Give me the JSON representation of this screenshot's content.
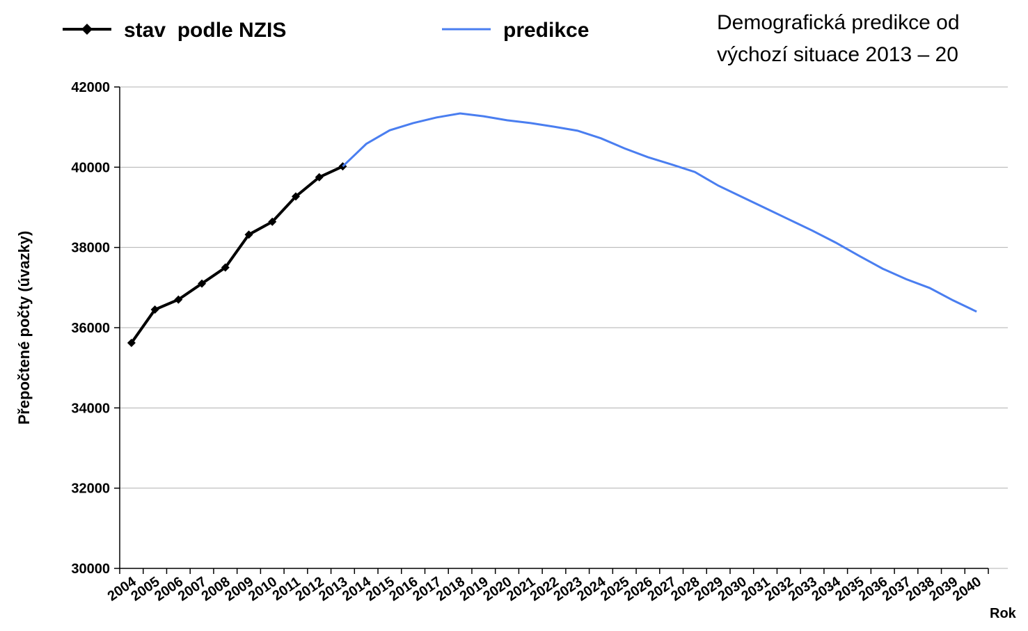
{
  "chart_data": {
    "type": "line",
    "title": [
      "Demografická predikce od",
      "výchozí situace 2013 – 20"
    ],
    "y_label": "Přepočtené počty (úvazky)",
    "x_label": "Rok",
    "categories": [
      "2004",
      "2005",
      "2006",
      "2007",
      "2008",
      "2009",
      "2010",
      "2011",
      "2012",
      "2013",
      "2014",
      "2015",
      "2016",
      "2017",
      "2018",
      "2019",
      "2020",
      "2021",
      "2022",
      "2023",
      "2024",
      "2025",
      "2026",
      "2027",
      "2028",
      "2029",
      "2030",
      "2031",
      "2032",
      "2033",
      "2034",
      "2035",
      "2036",
      "2037",
      "2038",
      "2039",
      "2040"
    ],
    "series": [
      {
        "name": "stav  podle NZIS",
        "color": "#000000",
        "marker": "diamond",
        "values": [
          35620,
          36450,
          36700,
          37100,
          37500,
          38320,
          38640,
          39270,
          39750,
          40020,
          null,
          null,
          null,
          null,
          null,
          null,
          null,
          null,
          null,
          null,
          null,
          null,
          null,
          null,
          null,
          null,
          null,
          null,
          null,
          null,
          null,
          null,
          null,
          null,
          null,
          null,
          null
        ]
      },
      {
        "name": "predikce",
        "color": "#4a7ef0",
        "values": [
          null,
          null,
          null,
          null,
          null,
          null,
          null,
          null,
          null,
          40020,
          40580,
          40920,
          41100,
          41240,
          41340,
          41270,
          41170,
          41100,
          41010,
          40910,
          40720,
          40470,
          40250,
          40070,
          39880,
          39540,
          39260,
          38980,
          38700,
          38420,
          38120,
          37790,
          37470,
          37210,
          36990,
          36680,
          36400
        ]
      }
    ],
    "ylim": [
      30000,
      42000
    ],
    "yticks": [
      30000,
      32000,
      34000,
      36000,
      38000,
      40000,
      42000
    ],
    "grid": true
  }
}
